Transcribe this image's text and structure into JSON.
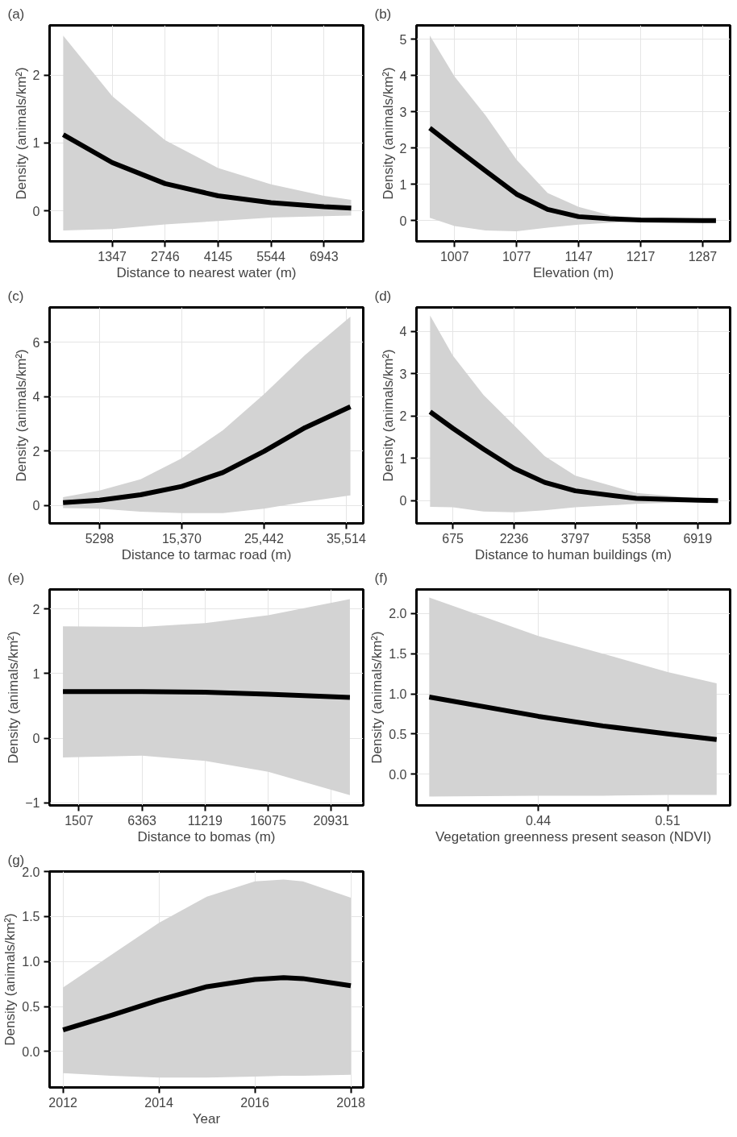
{
  "chart_data": [
    {
      "type": "line",
      "title": "(a)",
      "xlabel": "Distance to nearest water (m)",
      "ylabel": "Density (animals/km²)",
      "xlim": [
        -308,
        7982
      ],
      "ylim": [
        -0.45,
        2.73
      ],
      "xticks": [
        1347,
        2746,
        4145,
        5544,
        6943
      ],
      "yticks": [
        0,
        1,
        2
      ],
      "grid": true,
      "series": [
        {
          "color": "#000000",
          "x": [
            52,
            1347,
            2746,
            4145,
            5544,
            6943,
            7663
          ],
          "values": [
            1.12,
            0.71,
            0.4,
            0.22,
            0.12,
            0.06,
            0.04
          ],
          "lower": [
            -0.29,
            -0.27,
            -0.2,
            -0.15,
            -0.1,
            -0.08,
            -0.07
          ],
          "upper": [
            2.58,
            1.69,
            1.04,
            0.63,
            0.39,
            0.22,
            0.16
          ]
        }
      ]
    },
    {
      "type": "line",
      "title": "(b)",
      "xlabel": "Elevation (m)",
      "ylabel": "Density (animals/km²)",
      "xlim": [
        964,
        1318
      ],
      "ylim": [
        -0.57,
        5.38
      ],
      "xticks": [
        1007,
        1077,
        1147,
        1217,
        1287
      ],
      "yticks": [
        0,
        1,
        2,
        3,
        4,
        5
      ],
      "grid": true,
      "series": [
        {
          "color": "#000000",
          "x": [
            979,
            1007,
            1042,
            1077,
            1112,
            1147,
            1182,
            1217,
            1287,
            1302
          ],
          "values": [
            2.55,
            2.02,
            1.37,
            0.73,
            0.31,
            0.11,
            0.05,
            0.02,
            0.0,
            0.0
          ],
          "lower": [
            0.08,
            -0.15,
            -0.27,
            -0.29,
            -0.19,
            -0.11,
            -0.06,
            -0.02,
            -0.01,
            -0.01
          ],
          "upper": [
            5.1,
            3.97,
            2.9,
            1.68,
            0.76,
            0.38,
            0.15,
            0.06,
            0.01,
            0.01
          ]
        }
      ]
    },
    {
      "type": "line",
      "title": "(c)",
      "xlabel": "Distance to tarmac road (m)",
      "ylabel": "Density (animals/km²)",
      "xlim": [
        -818,
        37602
      ],
      "ylim": [
        -0.66,
        7.28
      ],
      "xticks": [
        5298,
        {
          "value": 15370,
          "label": "15,370"
        },
        {
          "value": 25442,
          "label": "25,442"
        },
        {
          "value": 35514,
          "label": "35,514"
        }
      ],
      "yticks": [
        0,
        2,
        4,
        6
      ],
      "grid": true,
      "series": [
        {
          "color": "#000000",
          "x": [
            830,
            5298,
            10334,
            15370,
            20406,
            25442,
            30478,
            36027
          ],
          "values": [
            0.1,
            0.19,
            0.39,
            0.7,
            1.21,
            1.99,
            2.86,
            3.63
          ],
          "lower": [
            -0.1,
            -0.12,
            -0.23,
            -0.28,
            -0.28,
            -0.12,
            0.13,
            0.37
          ],
          "upper": [
            0.3,
            0.55,
            0.96,
            1.73,
            2.76,
            4.09,
            5.53,
            6.94
          ]
        }
      ]
    },
    {
      "type": "line",
      "title": "(d)",
      "xlabel": "Distance to human buildings (m)",
      "ylabel": "Density (animals/km²)",
      "xlim": [
        -252,
        7746
      ],
      "ylim": [
        -0.54,
        4.57
      ],
      "xticks": [
        675,
        2236,
        3797,
        5358,
        6919
      ],
      "yticks": [
        0,
        1,
        2,
        3,
        4
      ],
      "grid": true,
      "series": [
        {
          "color": "#000000",
          "x": [
            95,
            675,
            1455,
            2236,
            3016,
            3797,
            5358,
            6919,
            7437
          ],
          "values": [
            2.1,
            1.71,
            1.22,
            0.76,
            0.43,
            0.23,
            0.05,
            0.01,
            0.0
          ],
          "lower": [
            -0.15,
            -0.16,
            -0.26,
            -0.28,
            -0.23,
            -0.16,
            -0.08,
            -0.03,
            -0.02
          ],
          "upper": [
            4.38,
            3.43,
            2.5,
            1.78,
            1.05,
            0.59,
            0.18,
            0.05,
            0.03
          ]
        }
      ]
    },
    {
      "type": "line",
      "title": "(e)",
      "xlabel": "Distance to bomas (m)",
      "ylabel": "Density (animals/km²)",
      "xlim": [
        -756,
        23400
      ],
      "ylim": [
        -1.04,
        2.3
      ],
      "xticks": [
        1507,
        6363,
        11219,
        16075,
        20931
      ],
      "yticks": [
        -1,
        0,
        1,
        2
      ],
      "grid": true,
      "series": [
        {
          "color": "#000000",
          "x": [
            272,
            6363,
            11219,
            16075,
            22371
          ],
          "values": [
            0.72,
            0.72,
            0.71,
            0.68,
            0.63
          ],
          "lower": [
            -0.3,
            -0.27,
            -0.35,
            -0.52,
            -0.88
          ],
          "upper": [
            1.73,
            1.72,
            1.78,
            1.9,
            2.15
          ]
        }
      ]
    },
    {
      "type": "line",
      "title": "(f)",
      "xlabel": "Vegetation greenness present season (NDVI)",
      "ylabel": "Density (animals/km²)",
      "xlim": [
        0.3741,
        0.5438
      ],
      "ylim": [
        -0.39,
        2.3
      ],
      "xticks": [
        0.44,
        0.51
      ],
      "yticks": [
        {
          "value": 0,
          "label": "0.0"
        },
        0.5,
        {
          "value": 1,
          "label": "1.0"
        },
        1.5,
        {
          "value": 2,
          "label": "2.0"
        }
      ],
      "grid": true,
      "series": [
        {
          "color": "#000000",
          "x": [
            0.381,
            0.44,
            0.475,
            0.51,
            0.5365
          ],
          "values": [
            0.96,
            0.72,
            0.6,
            0.5,
            0.43
          ],
          "lower": [
            -0.28,
            -0.27,
            -0.27,
            -0.26,
            -0.26
          ],
          "upper": [
            2.2,
            1.72,
            1.5,
            1.27,
            1.13
          ]
        }
      ]
    },
    {
      "type": "line",
      "title": "(g)",
      "xlabel": "Year",
      "ylabel": "Density (animals/km²)",
      "xlim": [
        2011.72,
        2018.26
      ],
      "ylim": [
        -0.4,
        2.0
      ],
      "xticks": [
        2012,
        2014,
        2016,
        2018
      ],
      "yticks": [
        {
          "value": 0,
          "label": "0.0"
        },
        0.5,
        {
          "value": 1,
          "label": "1.0"
        },
        1.5,
        {
          "value": 2,
          "label": "2.0"
        }
      ],
      "grid": true,
      "series": [
        {
          "color": "#000000",
          "x": [
            2012,
            2013,
            2014,
            2015,
            2016,
            2016.6,
            2017,
            2018
          ],
          "values": [
            0.24,
            0.4,
            0.57,
            0.72,
            0.8,
            0.82,
            0.81,
            0.73
          ],
          "lower": [
            -0.24,
            -0.27,
            -0.29,
            -0.29,
            -0.28,
            -0.27,
            -0.27,
            -0.26
          ],
          "upper": [
            0.71,
            1.07,
            1.43,
            1.72,
            1.89,
            1.91,
            1.89,
            1.71
          ]
        }
      ]
    }
  ]
}
